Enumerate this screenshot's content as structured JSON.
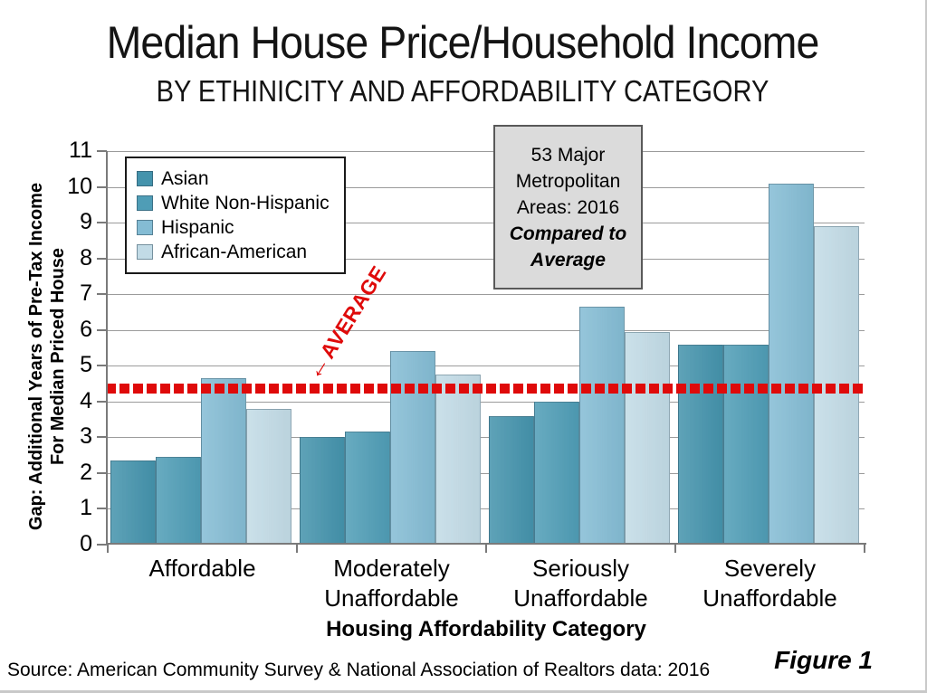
{
  "page": {
    "title": "Median House Price/Household Income",
    "subtitle": "BY ETHINICITY AND AFFORDABILITY CATEGORY",
    "source": "Source: American Community Survey & National Association of Realtors data: 2016",
    "figure_label": "Figure 1"
  },
  "annotation": {
    "line1": "53 Major Metropolitan Areas: 2016",
    "line2": "Compared to Average"
  },
  "chart_data": {
    "type": "bar",
    "title": "Median House Price/Household Income",
    "subtitle": "BY ETHINICITY AND AFFORDABILITY CATEGORY",
    "xlabel": "Housing Affordability Category",
    "ylabel_line1": "Gap: Additional Years of Pre-Tax Income",
    "ylabel_line2": "For Median Priced House",
    "ylim": [
      0,
      11
    ],
    "y_ticks": [
      0,
      1,
      2,
      3,
      4,
      5,
      6,
      7,
      8,
      9,
      10,
      11
    ],
    "grid": true,
    "legend_position": "top-left",
    "categories": [
      "Affordable",
      "Moderately Unaffordable",
      "Seriously Unaffordable",
      "Severely Unaffordable"
    ],
    "series": [
      {
        "name": "Asian",
        "color": "#4493ac",
        "values": [
          2.35,
          3.0,
          3.6,
          5.6
        ]
      },
      {
        "name": "White Non-Hispanic",
        "color": "#4f9db6",
        "values": [
          2.45,
          3.15,
          4.0,
          5.6
        ]
      },
      {
        "name": "Hispanic",
        "color": "#84bcd4",
        "values": [
          4.65,
          5.4,
          6.65,
          10.1
        ]
      },
      {
        "name": "African-American",
        "color": "#c2dbe6",
        "values": [
          3.8,
          4.75,
          5.95,
          8.9
        ]
      }
    ],
    "average_line": {
      "value": 4.35,
      "label": "AVERAGE",
      "arrow_icon": "←",
      "color": "#df0a0a",
      "style": "dotted"
    }
  }
}
